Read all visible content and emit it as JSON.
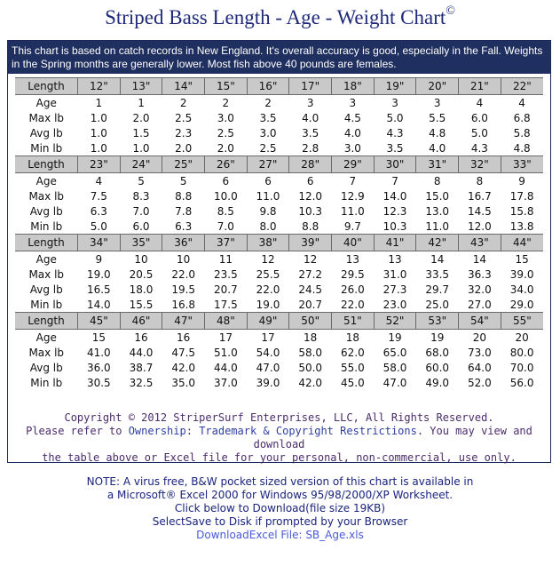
{
  "title": "Striped Bass Length - Age - Weight Chart",
  "title_symbol": "©",
  "intro": "This chart is based on catch records in New England. It's overall accuracy is good, especially in the Fall. Weights in the Spring months are generally lower. Most fish above 40 pounds are females.",
  "row_labels": {
    "length": "Length",
    "age": "Age",
    "max": "Max lb",
    "avg": "Avg lb",
    "min": "Min lb"
  },
  "blocks": [
    {
      "lengths": [
        "12\"",
        "13\"",
        "14\"",
        "15\"",
        "16\"",
        "17\"",
        "18\"",
        "19\"",
        "20\"",
        "21\"",
        "22\""
      ],
      "age": [
        "1",
        "1",
        "2",
        "2",
        "2",
        "3",
        "3",
        "3",
        "3",
        "4",
        "4"
      ],
      "max": [
        "1.0",
        "2.0",
        "2.5",
        "3.0",
        "3.5",
        "4.0",
        "4.5",
        "5.0",
        "5.5",
        "6.0",
        "6.8"
      ],
      "avg": [
        "1.0",
        "1.5",
        "2.3",
        "2.5",
        "3.0",
        "3.5",
        "4.0",
        "4.3",
        "4.8",
        "5.0",
        "5.8"
      ],
      "min": [
        "1.0",
        "1.0",
        "2.0",
        "2.0",
        "2.5",
        "2.8",
        "3.0",
        "3.5",
        "4.0",
        "4.3",
        "4.8"
      ]
    },
    {
      "lengths": [
        "23\"",
        "24\"",
        "25\"",
        "26\"",
        "27\"",
        "28\"",
        "29\"",
        "30\"",
        "31\"",
        "32\"",
        "33\""
      ],
      "age": [
        "4",
        "5",
        "5",
        "6",
        "6",
        "6",
        "7",
        "7",
        "8",
        "8",
        "9"
      ],
      "max": [
        "7.5",
        "8.3",
        "8.8",
        "10.0",
        "11.0",
        "12.0",
        "12.9",
        "14.0",
        "15.0",
        "16.7",
        "17.8"
      ],
      "avg": [
        "6.3",
        "7.0",
        "7.8",
        "8.5",
        "9.8",
        "10.3",
        "11.0",
        "12.3",
        "13.0",
        "14.5",
        "15.8"
      ],
      "min": [
        "5.0",
        "6.0",
        "6.3",
        "7.0",
        "8.0",
        "8.8",
        "9.7",
        "10.3",
        "11.0",
        "12.0",
        "13.8"
      ]
    },
    {
      "lengths": [
        "34\"",
        "35\"",
        "36\"",
        "37\"",
        "38\"",
        "39\"",
        "40\"",
        "41\"",
        "42\"",
        "43\"",
        "44\""
      ],
      "age": [
        "9",
        "10",
        "10",
        "11",
        "12",
        "12",
        "13",
        "13",
        "14",
        "14",
        "15"
      ],
      "max": [
        "19.0",
        "20.5",
        "22.0",
        "23.5",
        "25.5",
        "27.2",
        "29.5",
        "31.0",
        "33.5",
        "36.3",
        "39.0"
      ],
      "avg": [
        "16.5",
        "18.0",
        "19.5",
        "20.7",
        "22.0",
        "24.5",
        "26.0",
        "27.3",
        "29.7",
        "32.0",
        "34.0"
      ],
      "min": [
        "14.0",
        "15.5",
        "16.8",
        "17.5",
        "19.0",
        "20.7",
        "22.0",
        "23.0",
        "25.0",
        "27.0",
        "29.0"
      ]
    },
    {
      "lengths": [
        "45\"",
        "46\"",
        "47\"",
        "48\"",
        "49\"",
        "50\"",
        "51\"",
        "52\"",
        "53\"",
        "54\"",
        "55\""
      ],
      "age": [
        "15",
        "16",
        "16",
        "17",
        "17",
        "18",
        "18",
        "19",
        "19",
        "20",
        "20"
      ],
      "max": [
        "41.0",
        "44.0",
        "47.5",
        "51.0",
        "54.0",
        "58.0",
        "62.0",
        "65.0",
        "68.0",
        "73.0",
        "80.0"
      ],
      "avg": [
        "36.0",
        "38.7",
        "42.0",
        "44.0",
        "47.0",
        "50.0",
        "55.0",
        "58.0",
        "60.0",
        "64.0",
        "70.0"
      ],
      "min": [
        "30.5",
        "32.5",
        "35.0",
        "37.0",
        "39.0",
        "42.0",
        "45.0",
        "47.0",
        "49.0",
        "52.0",
        "56.0"
      ]
    }
  ],
  "copyright": {
    "line1": "Copyright © 2012 StriperSurf Enterprises, LLC, All Rights Reserved.",
    "line2_prefix": "Please refer to ",
    "link_ownership": "Ownership",
    "colon": ": ",
    "link_trademark": "Trademark & Copyright Restrictions",
    "line2_suffix": ". You may view and download",
    "line3": "the table above or Excel file for your personal, non-commercial, use only."
  },
  "note": {
    "line1": "NOTE: A virus free, B&W pocket sized version of this chart is available in",
    "line2": "a Microsoft® Excel 2000 for Windows 95/98/2000/XP Worksheet.",
    "line3": "Click below to Download(file size 19KB)",
    "line4": "SelectSave to Disk if prompted by your Browser",
    "download_link": "DownloadExcel File: SB_Age.xls"
  }
}
